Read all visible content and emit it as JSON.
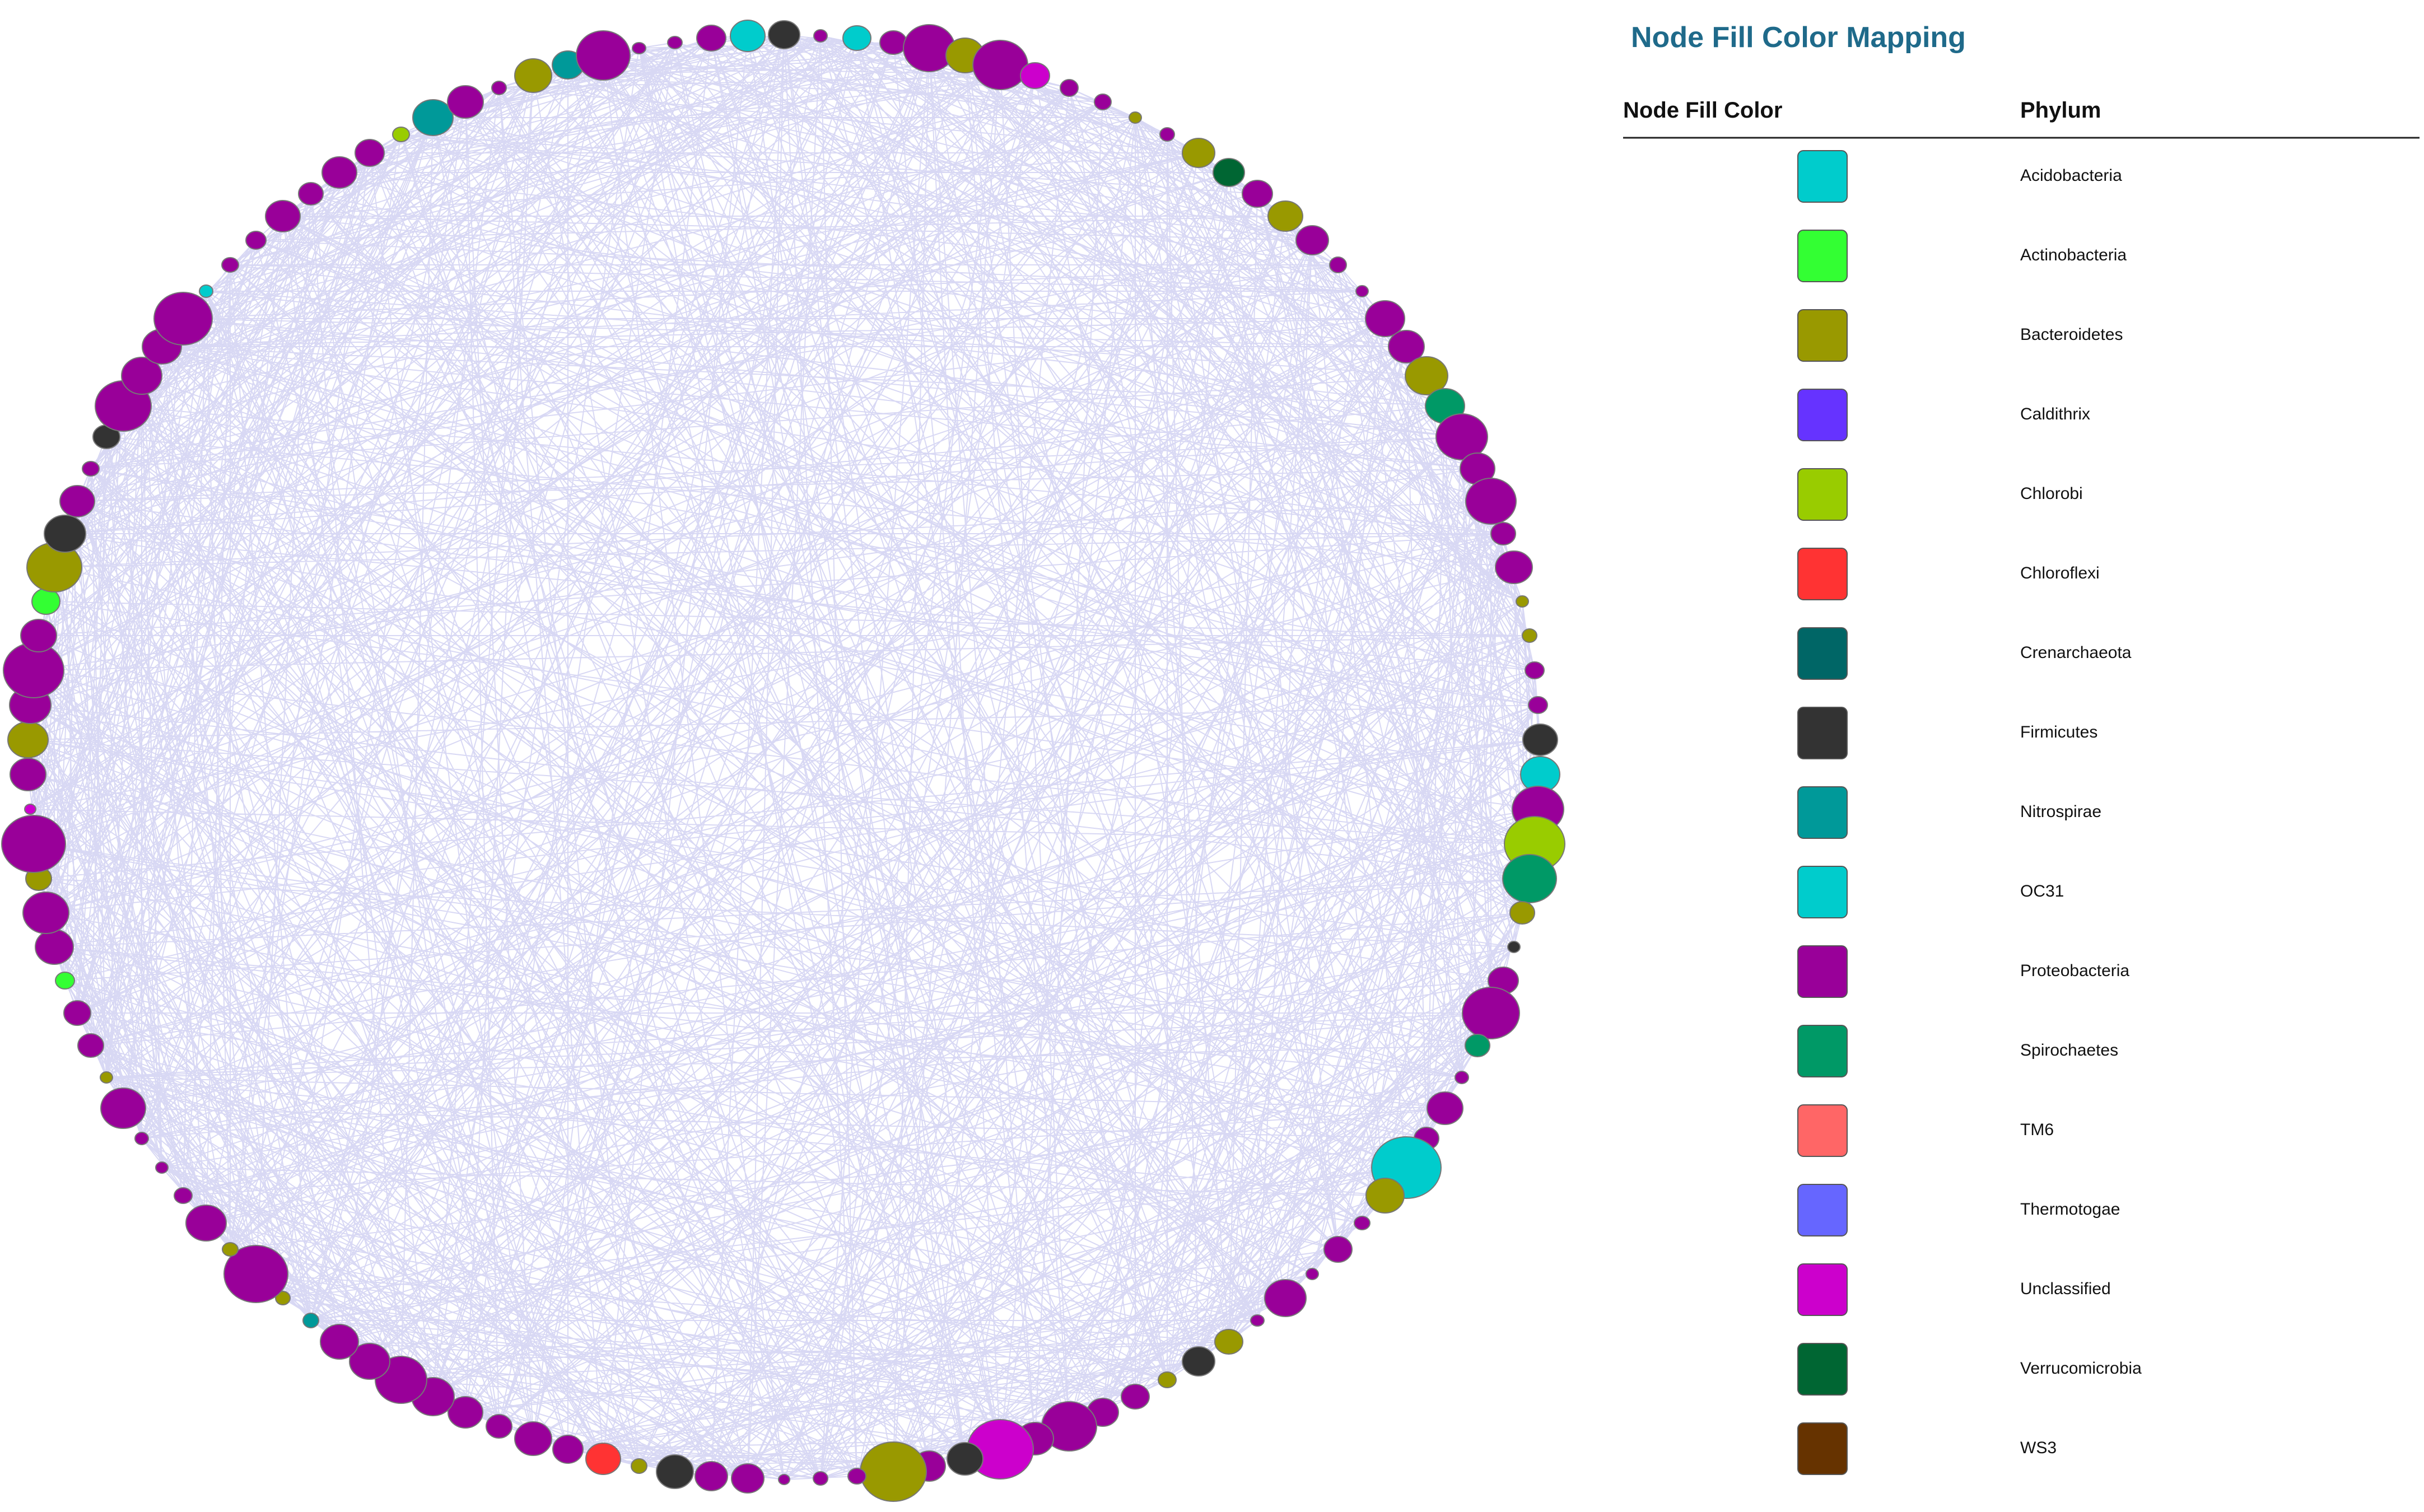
{
  "legend": {
    "title": "Node Fill Color Mapping",
    "headers": [
      "Node Fill Color",
      "Phylum"
    ],
    "items": [
      {
        "color": "#00cccc",
        "label": "Acidobacteria"
      },
      {
        "color": "#33ff33",
        "label": "Actinobacteria"
      },
      {
        "color": "#999900",
        "label": "Bacteroidetes"
      },
      {
        "color": "#6633ff",
        "label": "Caldithrix"
      },
      {
        "color": "#99cc00",
        "label": "Chlorobi"
      },
      {
        "color": "#ff3333",
        "label": "Chloroflexi"
      },
      {
        "color": "#006666",
        "label": "Crenarchaeota"
      },
      {
        "color": "#333333",
        "label": "Firmicutes"
      },
      {
        "color": "#009999",
        "label": "Nitrospirae"
      },
      {
        "color": "#00cccc",
        "label": "OC31"
      },
      {
        "color": "#990099",
        "label": "Proteobacteria"
      },
      {
        "color": "#009966",
        "label": "Spirochaetes"
      },
      {
        "color": "#ff6666",
        "label": "TM6"
      },
      {
        "color": "#6666ff",
        "label": "Thermotogae"
      },
      {
        "color": "#cc00cc",
        "label": "Unclassified"
      },
      {
        "color": "#006633",
        "label": "Verrucomicrobia"
      },
      {
        "color": "#663300",
        "label": "WS3"
      }
    ]
  }
}
